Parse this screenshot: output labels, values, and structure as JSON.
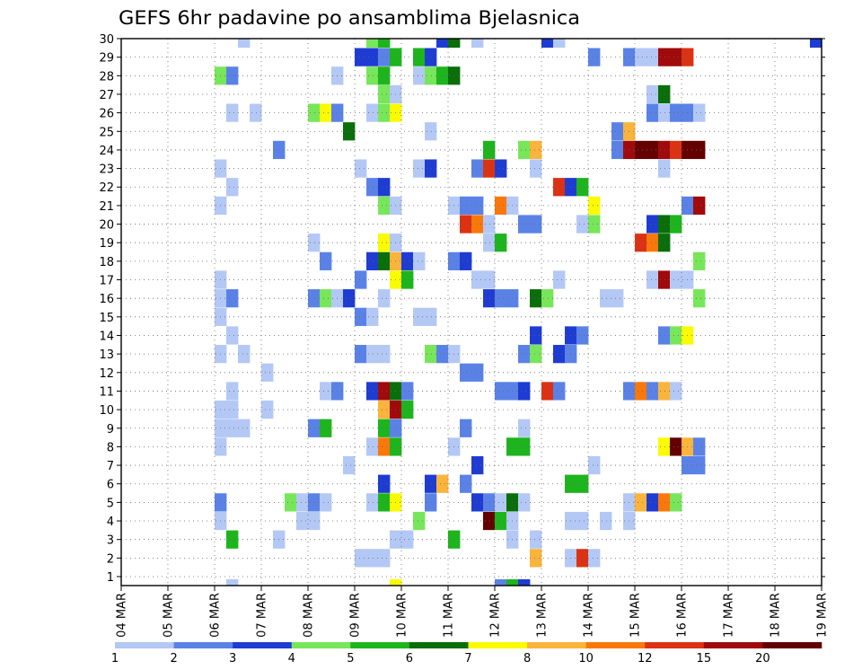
{
  "chart_data": {
    "type": "heatmap",
    "title": "GEFS 6hr padavine po ansamblima Bjelasnica",
    "x_tick_labels": [
      "04 MAR",
      "05 MAR",
      "06 MAR",
      "07 MAR",
      "08 MAR",
      "09 MAR",
      "10 MAR",
      "11 MAR",
      "12 MAR",
      "13 MAR",
      "14 MAR",
      "15 MAR",
      "16 MAR",
      "17 MAR",
      "18 MAR",
      "19 MAR"
    ],
    "y_tick_labels": [
      "1",
      "2",
      "3",
      "4",
      "5",
      "6",
      "7",
      "8",
      "9",
      "10",
      "11",
      "12",
      "13",
      "14",
      "15",
      "16",
      "17",
      "18",
      "19",
      "20",
      "21",
      "22",
      "23",
      "24",
      "25",
      "26",
      "27",
      "28",
      "29",
      "30"
    ],
    "x_range_days": [
      0,
      15
    ],
    "y_range": [
      0,
      30
    ],
    "steps_per_day": 4,
    "grid": "dotted",
    "color_levels": [
      {
        "label": "1",
        "color": "#b4c8f5"
      },
      {
        "label": "2",
        "color": "#5a82e6"
      },
      {
        "label": "3",
        "color": "#1e3cd2"
      },
      {
        "label": "4",
        "color": "#78e65a"
      },
      {
        "label": "5",
        "color": "#1eb41e"
      },
      {
        "label": "6",
        "color": "#0a6e0a"
      },
      {
        "label": "7",
        "color": "#fafa00"
      },
      {
        "label": "8",
        "color": "#fab43c"
      },
      {
        "label": "10",
        "color": "#fa780a"
      },
      {
        "label": "12",
        "color": "#dc3214"
      },
      {
        "label": "15",
        "color": "#a00a0a"
      },
      {
        "label": "20",
        "color": "#640000"
      }
    ],
    "cells": [
      [
        30,
        [
          [
            10,
            0
          ],
          [
            21,
            3
          ],
          [
            22,
            4
          ],
          [
            27,
            2
          ],
          [
            28,
            5
          ],
          [
            30,
            0
          ],
          [
            36,
            2
          ],
          [
            37,
            0
          ],
          [
            59,
            2
          ]
        ]
      ],
      [
        29,
        [
          [
            20,
            2
          ],
          [
            21,
            2
          ],
          [
            22,
            1
          ],
          [
            23,
            4
          ],
          [
            25,
            4
          ],
          [
            26,
            2
          ],
          [
            40,
            1
          ],
          [
            43,
            1
          ],
          [
            44,
            0
          ],
          [
            45,
            0
          ],
          [
            46,
            10
          ],
          [
            47,
            10
          ],
          [
            48,
            9
          ]
        ]
      ],
      [
        28,
        [
          [
            8,
            3
          ],
          [
            9,
            1
          ],
          [
            18,
            0
          ],
          [
            21,
            3
          ],
          [
            22,
            4
          ],
          [
            25,
            0
          ],
          [
            26,
            3
          ],
          [
            27,
            4
          ],
          [
            28,
            5
          ]
        ]
      ],
      [
        27,
        [
          [
            22,
            3
          ],
          [
            23,
            0
          ],
          [
            45,
            0
          ],
          [
            46,
            5
          ]
        ]
      ],
      [
        26,
        [
          [
            9,
            0
          ],
          [
            11,
            0
          ],
          [
            16,
            3
          ],
          [
            17,
            6
          ],
          [
            18,
            1
          ],
          [
            21,
            0
          ],
          [
            22,
            3
          ],
          [
            23,
            6
          ],
          [
            45,
            1
          ],
          [
            46,
            0
          ],
          [
            47,
            1
          ],
          [
            48,
            1
          ],
          [
            49,
            0
          ]
        ]
      ],
      [
        25,
        [
          [
            19,
            5
          ],
          [
            26,
            0
          ],
          [
            42,
            1
          ],
          [
            43,
            7
          ]
        ]
      ],
      [
        24,
        [
          [
            13,
            1
          ],
          [
            31,
            4
          ],
          [
            34,
            3
          ],
          [
            35,
            7
          ],
          [
            42,
            1
          ],
          [
            43,
            10
          ],
          [
            44,
            11
          ],
          [
            45,
            11
          ],
          [
            46,
            10
          ],
          [
            47,
            9
          ],
          [
            48,
            11
          ],
          [
            49,
            11
          ]
        ]
      ],
      [
        23,
        [
          [
            8,
            0
          ],
          [
            20,
            0
          ],
          [
            25,
            0
          ],
          [
            26,
            2
          ],
          [
            30,
            1
          ],
          [
            31,
            9
          ],
          [
            32,
            2
          ],
          [
            35,
            0
          ],
          [
            46,
            0
          ]
        ]
      ],
      [
        22,
        [
          [
            9,
            0
          ],
          [
            21,
            1
          ],
          [
            22,
            2
          ],
          [
            37,
            9
          ],
          [
            38,
            2
          ],
          [
            39,
            4
          ]
        ]
      ],
      [
        21,
        [
          [
            8,
            0
          ],
          [
            22,
            3
          ],
          [
            23,
            0
          ],
          [
            28,
            0
          ],
          [
            29,
            1
          ],
          [
            30,
            1
          ],
          [
            32,
            8
          ],
          [
            33,
            0
          ],
          [
            40,
            6
          ],
          [
            48,
            1
          ],
          [
            49,
            10
          ]
        ]
      ],
      [
        20,
        [
          [
            29,
            9
          ],
          [
            30,
            8
          ],
          [
            31,
            0
          ],
          [
            34,
            1
          ],
          [
            35,
            1
          ],
          [
            39,
            0
          ],
          [
            40,
            3
          ],
          [
            45,
            2
          ],
          [
            46,
            5
          ],
          [
            47,
            4
          ]
        ]
      ],
      [
        19,
        [
          [
            16,
            0
          ],
          [
            22,
            6
          ],
          [
            23,
            0
          ],
          [
            31,
            0
          ],
          [
            32,
            4
          ],
          [
            44,
            9
          ],
          [
            45,
            8
          ],
          [
            46,
            5
          ]
        ]
      ],
      [
        18,
        [
          [
            17,
            1
          ],
          [
            21,
            2
          ],
          [
            22,
            5
          ],
          [
            23,
            7
          ],
          [
            24,
            2
          ],
          [
            25,
            0
          ],
          [
            28,
            1
          ],
          [
            29,
            2
          ],
          [
            49,
            3
          ]
        ]
      ],
      [
        17,
        [
          [
            8,
            0
          ],
          [
            20,
            1
          ],
          [
            23,
            6
          ],
          [
            24,
            4
          ],
          [
            30,
            0
          ],
          [
            31,
            0
          ],
          [
            37,
            0
          ],
          [
            45,
            0
          ],
          [
            46,
            10
          ],
          [
            47,
            0
          ],
          [
            48,
            0
          ]
        ]
      ],
      [
        16,
        [
          [
            8,
            0
          ],
          [
            9,
            1
          ],
          [
            16,
            1
          ],
          [
            17,
            3
          ],
          [
            18,
            0
          ],
          [
            19,
            2
          ],
          [
            22,
            0
          ],
          [
            31,
            2
          ],
          [
            32,
            1
          ],
          [
            33,
            1
          ],
          [
            35,
            5
          ],
          [
            36,
            3
          ],
          [
            41,
            0
          ],
          [
            42,
            0
          ],
          [
            49,
            3
          ]
        ]
      ],
      [
        15,
        [
          [
            8,
            0
          ],
          [
            20,
            1
          ],
          [
            21,
            0
          ],
          [
            25,
            0
          ],
          [
            26,
            0
          ]
        ]
      ],
      [
        14,
        [
          [
            9,
            0
          ],
          [
            35,
            2
          ],
          [
            38,
            2
          ],
          [
            39,
            1
          ],
          [
            46,
            1
          ],
          [
            47,
            3
          ],
          [
            48,
            6
          ]
        ]
      ],
      [
        13,
        [
          [
            8,
            0
          ],
          [
            10,
            0
          ],
          [
            20,
            1
          ],
          [
            21,
            0
          ],
          [
            22,
            0
          ],
          [
            26,
            3
          ],
          [
            27,
            1
          ],
          [
            28,
            0
          ],
          [
            34,
            1
          ],
          [
            35,
            3
          ],
          [
            37,
            2
          ],
          [
            38,
            1
          ]
        ]
      ],
      [
        12,
        [
          [
            12,
            0
          ],
          [
            29,
            1
          ],
          [
            30,
            1
          ]
        ]
      ],
      [
        11,
        [
          [
            9,
            0
          ],
          [
            17,
            0
          ],
          [
            18,
            1
          ],
          [
            21,
            2
          ],
          [
            22,
            10
          ],
          [
            23,
            5
          ],
          [
            24,
            1
          ],
          [
            32,
            1
          ],
          [
            33,
            1
          ],
          [
            34,
            2
          ],
          [
            36,
            9
          ],
          [
            37,
            1
          ],
          [
            43,
            1
          ],
          [
            44,
            8
          ],
          [
            45,
            1
          ],
          [
            46,
            7
          ],
          [
            47,
            0
          ]
        ]
      ],
      [
        10,
        [
          [
            8,
            0
          ],
          [
            9,
            0
          ],
          [
            12,
            0
          ],
          [
            22,
            7
          ],
          [
            23,
            10
          ],
          [
            24,
            4
          ]
        ]
      ],
      [
        9,
        [
          [
            8,
            0
          ],
          [
            9,
            0
          ],
          [
            10,
            0
          ],
          [
            16,
            1
          ],
          [
            17,
            4
          ],
          [
            22,
            4
          ],
          [
            23,
            1
          ],
          [
            29,
            1
          ],
          [
            34,
            0
          ]
        ]
      ],
      [
        8,
        [
          [
            8,
            0
          ],
          [
            21,
            0
          ],
          [
            22,
            8
          ],
          [
            23,
            4
          ],
          [
            28,
            0
          ],
          [
            33,
            4
          ],
          [
            34,
            4
          ],
          [
            46,
            6
          ],
          [
            47,
            11
          ],
          [
            48,
            7
          ],
          [
            49,
            1
          ]
        ]
      ],
      [
        7,
        [
          [
            19,
            0
          ],
          [
            30,
            2
          ],
          [
            40,
            0
          ],
          [
            48,
            1
          ],
          [
            49,
            1
          ]
        ]
      ],
      [
        6,
        [
          [
            22,
            2
          ],
          [
            26,
            2
          ],
          [
            27,
            7
          ],
          [
            29,
            1
          ],
          [
            38,
            4
          ],
          [
            39,
            4
          ]
        ]
      ],
      [
        5,
        [
          [
            8,
            1
          ],
          [
            14,
            3
          ],
          [
            15,
            0
          ],
          [
            16,
            1
          ],
          [
            17,
            0
          ],
          [
            21,
            0
          ],
          [
            22,
            4
          ],
          [
            23,
            6
          ],
          [
            26,
            1
          ],
          [
            30,
            2
          ],
          [
            31,
            1
          ],
          [
            32,
            0
          ],
          [
            33,
            5
          ],
          [
            34,
            0
          ],
          [
            43,
            0
          ],
          [
            44,
            7
          ],
          [
            45,
            2
          ],
          [
            46,
            8
          ],
          [
            47,
            3
          ]
        ]
      ],
      [
        4,
        [
          [
            8,
            0
          ],
          [
            15,
            0
          ],
          [
            16,
            0
          ],
          [
            25,
            3
          ],
          [
            31,
            11
          ],
          [
            32,
            4
          ],
          [
            33,
            0
          ],
          [
            38,
            0
          ],
          [
            39,
            0
          ],
          [
            41,
            0
          ],
          [
            43,
            0
          ]
        ]
      ],
      [
        3,
        [
          [
            9,
            4
          ],
          [
            13,
            0
          ],
          [
            23,
            0
          ],
          [
            24,
            0
          ],
          [
            28,
            4
          ],
          [
            33,
            0
          ],
          [
            35,
            0
          ]
        ]
      ],
      [
        2,
        [
          [
            20,
            0
          ],
          [
            21,
            0
          ],
          [
            22,
            0
          ],
          [
            35,
            7
          ],
          [
            38,
            0
          ],
          [
            39,
            9
          ],
          [
            40,
            0
          ]
        ]
      ],
      [
        1,
        []
      ]
    ],
    "bottom_partial_cells": [
      [
        9,
        0
      ],
      [
        23,
        6
      ],
      [
        32,
        1
      ],
      [
        33,
        4
      ],
      [
        34,
        2
      ]
    ]
  }
}
